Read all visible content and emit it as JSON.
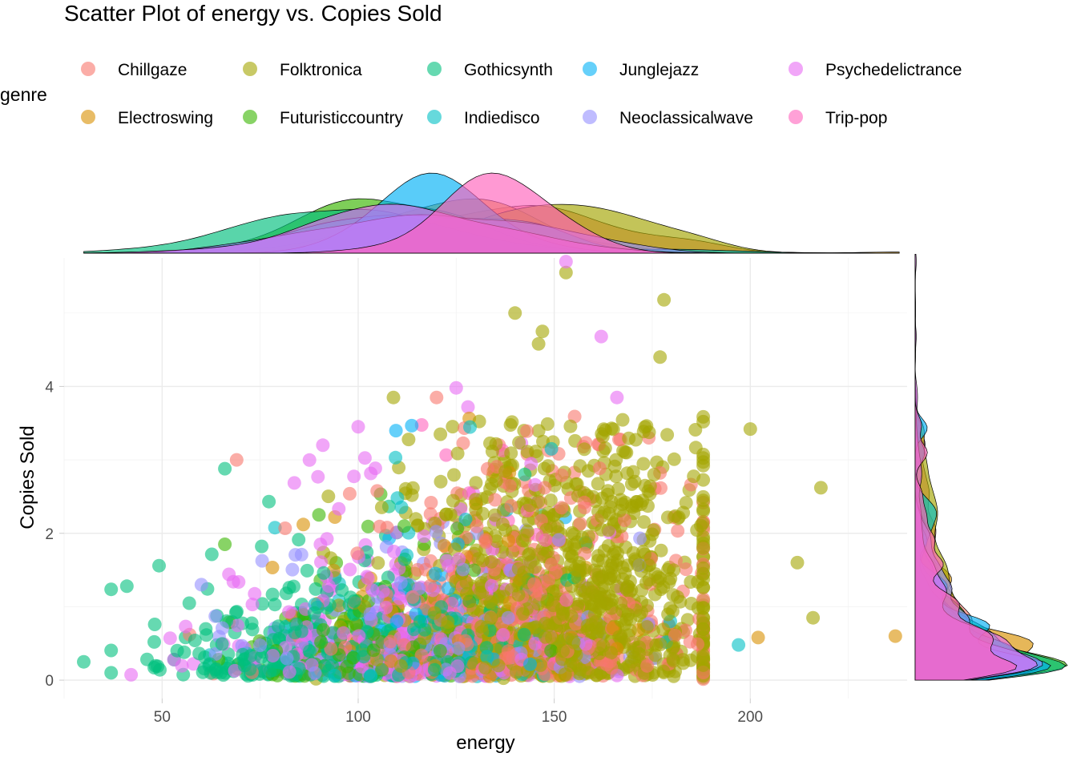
{
  "chart_data": {
    "type": "scatter",
    "title": "Scatter Plot of energy vs. Copies Sold",
    "xlabel": "energy",
    "ylabel": "Copies Sold",
    "xlim": [
      25,
      240
    ],
    "ylim": [
      -0.25,
      5.75
    ],
    "x_ticks": [
      50,
      100,
      150,
      200
    ],
    "y_ticks": [
      0,
      2,
      4
    ],
    "grid": true,
    "legend": {
      "title": "genre",
      "placement": "top"
    },
    "marginal": {
      "top": "density",
      "right": "density"
    },
    "series": [
      {
        "name": "Chillgaze",
        "color": "#F8766D",
        "x_center": 145,
        "x_sd": 24,
        "y_mean": 0.9,
        "extra_points": [
          [
            69,
            3.0
          ],
          [
            120,
            3.85
          ],
          [
            57,
            0.62
          ]
        ]
      },
      {
        "name": "Electroswing",
        "color": "#D89000",
        "x_center": 122,
        "x_sd": 20,
        "y_mean": 0.7,
        "extra_points": [
          [
            237,
            0.6
          ],
          [
            202,
            0.58
          ],
          [
            86,
            2.12
          ]
        ]
      },
      {
        "name": "Folktronica",
        "color": "#A3A500",
        "x_center": 152,
        "x_sd": 22,
        "y_mean": 1.15,
        "extra_points": [
          [
            153,
            5.55
          ],
          [
            178,
            5.18
          ],
          [
            140,
            5.0
          ],
          [
            147,
            4.75
          ],
          [
            218,
            2.62
          ],
          [
            212,
            1.6
          ],
          [
            216,
            0.85
          ],
          [
            109,
            3.85
          ],
          [
            200,
            3.42
          ],
          [
            177,
            4.4
          ],
          [
            146,
            4.58
          ]
        ]
      },
      {
        "name": "Futuristiccountry",
        "color": "#39B600",
        "x_center": 105,
        "x_sd": 20,
        "y_mean": 0.55,
        "extra_points": [
          [
            66,
            1.85
          ],
          [
            90,
            2.25
          ]
        ]
      },
      {
        "name": "Gothicsynth",
        "color": "#00BF7D",
        "x_center": 98,
        "x_sd": 24,
        "y_mean": 0.5,
        "extra_points": [
          [
            30,
            0.25
          ],
          [
            41,
            1.28
          ],
          [
            66,
            2.88
          ],
          [
            48,
            0.52
          ],
          [
            48,
            0.17
          ]
        ]
      },
      {
        "name": "Indiedisco",
        "color": "#00BFC4",
        "x_center": 118,
        "x_sd": 22,
        "y_mean": 0.55,
        "extra_points": [
          [
            110,
            2.48
          ],
          [
            197,
            0.48
          ]
        ]
      },
      {
        "name": "Junglejazz",
        "color": "#00B0F6",
        "x_center": 122,
        "x_sd": 14,
        "y_mean": 0.6,
        "extra_points": []
      },
      {
        "name": "Neoclassicalwave",
        "color": "#9590FF",
        "x_center": 118,
        "x_sd": 26,
        "y_mean": 0.7,
        "extra_points": [
          [
            60,
            1.3
          ]
        ]
      },
      {
        "name": "Psychedelictrance",
        "color": "#E76BF3",
        "x_center": 112,
        "x_sd": 24,
        "y_mean": 0.75,
        "extra_points": [
          [
            153,
            5.7
          ],
          [
            162,
            4.68
          ],
          [
            128,
            3.72
          ],
          [
            91,
            3.2
          ],
          [
            100,
            3.45
          ],
          [
            166,
            3.85
          ],
          [
            125,
            3.98
          ],
          [
            53,
            0.28
          ]
        ]
      },
      {
        "name": "Trip-pop",
        "color": "#FF62BC",
        "x_center": 135,
        "x_sd": 12,
        "y_mean": 0.7,
        "extra_points": []
      }
    ]
  }
}
